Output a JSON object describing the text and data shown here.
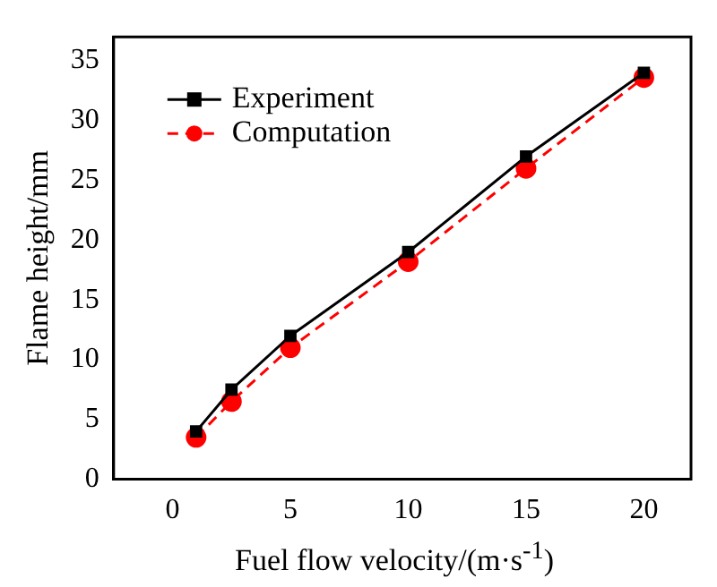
{
  "chart_data": {
    "type": "line",
    "xlabel": "Fuel flow velocity/(m·s$^{-1}$)",
    "ylabel": "Flame height/mm",
    "x": [
      1,
      2.5,
      5,
      10,
      15,
      20
    ],
    "series": [
      {
        "name": "Experiment",
        "color": "#000000",
        "values": [
          4,
          7.5,
          12,
          19,
          27,
          34
        ],
        "marker": "square",
        "line_style": "solid"
      },
      {
        "name": "Computation",
        "color": "#ff0000",
        "values": [
          3.5,
          6.5,
          11,
          18.2,
          26,
          33.6
        ],
        "marker": "circle",
        "line_style": "dashed"
      }
    ],
    "xlim": [
      -2.5,
      22
    ],
    "xticks": [
      0,
      5,
      10,
      15,
      20
    ],
    "ylim": [
      0,
      37
    ],
    "yticks": [
      0,
      5,
      10,
      15,
      20,
      25,
      30,
      35
    ],
    "grid": false,
    "legend": "top left"
  }
}
